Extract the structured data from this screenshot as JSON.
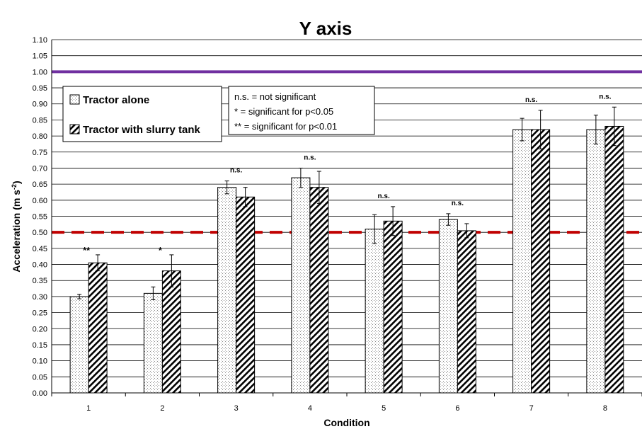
{
  "chart_data": {
    "type": "bar",
    "title": "Y axis",
    "xlabel": "Condition",
    "ylabel": "Acceleration (m s",
    "ylabel_sup": "-2",
    "ylabel_close": ")",
    "ylim": [
      0,
      1.1
    ],
    "ytick_step": 0.05,
    "categories": [
      "1",
      "2",
      "3",
      "4",
      "5",
      "6",
      "7",
      "8"
    ],
    "series": [
      {
        "name": "Tractor alone",
        "pattern": "dots",
        "values": [
          0.3,
          0.31,
          0.64,
          0.67,
          0.51,
          0.54,
          0.82,
          0.82
        ],
        "errors": [
          0.007,
          0.02,
          0.02,
          0.03,
          0.045,
          0.018,
          0.035,
          0.045
        ]
      },
      {
        "name": "Tractor with slurry tank",
        "pattern": "diagonal",
        "values": [
          0.405,
          0.38,
          0.61,
          0.64,
          0.535,
          0.505,
          0.82,
          0.83
        ],
        "errors": [
          0.025,
          0.05,
          0.03,
          0.05,
          0.045,
          0.022,
          0.06,
          0.06
        ]
      }
    ],
    "significance": [
      "**",
      "*",
      "n.s.",
      "n.s.",
      "n.s.",
      "n.s.",
      "n.s.",
      "n.s."
    ],
    "reference_lines": [
      {
        "value": 1.0,
        "color": "#7030A0",
        "style": "solid"
      },
      {
        "value": 0.5,
        "color": "#C00000",
        "style": "dashed"
      }
    ],
    "notes": [
      "n.s. = not significant",
      "* = significant for p<0.05",
      "** = significant for p<0.01"
    ],
    "grid": true,
    "legend_position": "top-left"
  }
}
